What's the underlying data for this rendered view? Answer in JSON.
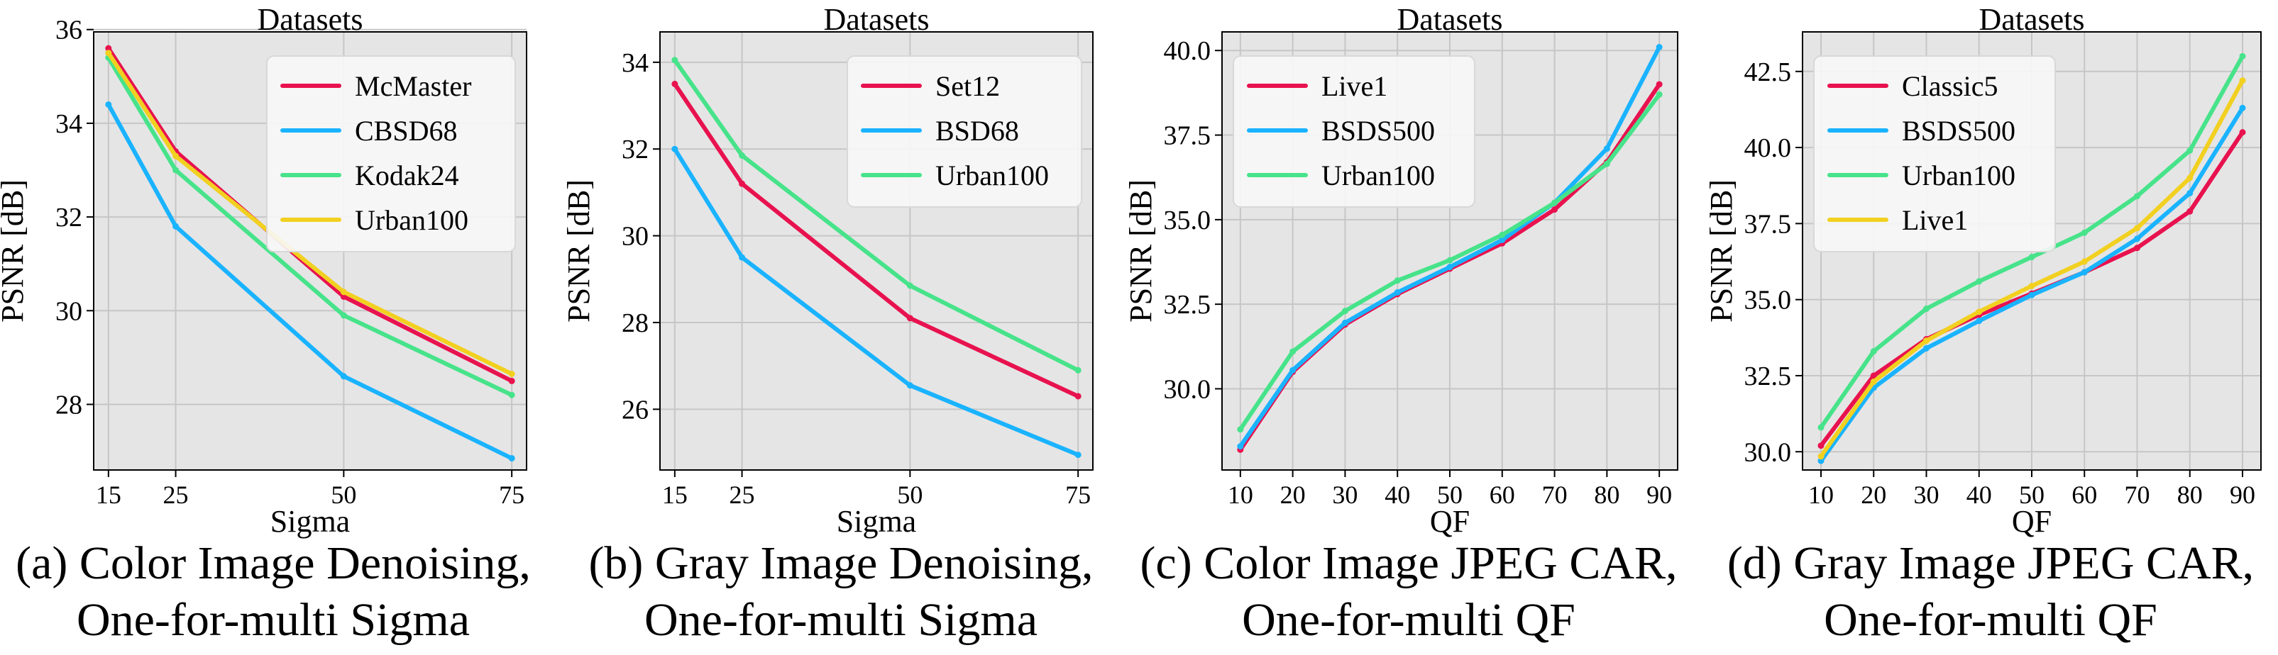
{
  "chart_data": [
    {
      "type": "line",
      "title": "Datasets",
      "xlabel": "Sigma",
      "ylabel": "PSNR [dB]",
      "x": [
        15,
        25,
        50,
        75
      ],
      "xticks": [
        15,
        25,
        50,
        75
      ],
      "xlim": [
        12.8,
        77.2
      ],
      "yticks": [
        28,
        30,
        32,
        34,
        36
      ],
      "ytick_labels": [
        "28",
        "30",
        "32",
        "34",
        "36"
      ],
      "ylim": [
        26.6,
        35.95
      ],
      "grid": true,
      "legend": "top-right",
      "caption": [
        "(a) Color Image Denoising,",
        "One-for-multi Sigma"
      ],
      "series": [
        {
          "name": "McMaster",
          "color": "#e8124f",
          "values": [
            35.6,
            33.4,
            30.3,
            28.5
          ]
        },
        {
          "name": "CBSD68",
          "color": "#1ab3ff",
          "values": [
            34.4,
            31.8,
            28.6,
            26.85
          ]
        },
        {
          "name": "Kodak24",
          "color": "#47e38a",
          "values": [
            35.4,
            33.0,
            29.9,
            28.2
          ]
        },
        {
          "name": "Urban100",
          "color": "#f2d020",
          "values": [
            35.5,
            33.3,
            30.4,
            28.65
          ]
        }
      ]
    },
    {
      "type": "line",
      "title": "Datasets",
      "xlabel": "Sigma",
      "ylabel": "PSNR [dB]",
      "x": [
        15,
        25,
        50,
        75
      ],
      "xticks": [
        15,
        25,
        50,
        75
      ],
      "xlim": [
        12.8,
        77.2
      ],
      "yticks": [
        26,
        28,
        30,
        32,
        34
      ],
      "ytick_labels": [
        "26",
        "28",
        "30",
        "32",
        "34"
      ],
      "ylim": [
        24.6,
        34.7
      ],
      "grid": true,
      "legend": "top-right",
      "caption": [
        "(b) Gray Image Denoising,",
        "One-for-multi Sigma"
      ],
      "series": [
        {
          "name": "Set12",
          "color": "#e8124f",
          "values": [
            33.5,
            31.2,
            28.1,
            26.3
          ]
        },
        {
          "name": "BSD68",
          "color": "#1ab3ff",
          "values": [
            32.0,
            29.5,
            26.55,
            24.95
          ]
        },
        {
          "name": "Urban100",
          "color": "#47e38a",
          "values": [
            34.05,
            31.85,
            28.85,
            26.9
          ]
        }
      ]
    },
    {
      "type": "line",
      "title": "Datasets",
      "xlabel": "QF",
      "ylabel": "PSNR [dB]",
      "x": [
        10,
        20,
        30,
        40,
        50,
        60,
        70,
        80,
        90
      ],
      "xticks": [
        10,
        20,
        30,
        40,
        50,
        60,
        70,
        80,
        90
      ],
      "xlim": [
        6.5,
        93.5
      ],
      "yticks": [
        30.0,
        32.5,
        35.0,
        37.5,
        40.0
      ],
      "ytick_labels": [
        "30.0",
        "32.5",
        "35.0",
        "37.5",
        "40.0"
      ],
      "ylim": [
        27.6,
        40.55
      ],
      "grid": true,
      "legend": "top-left",
      "caption": [
        "(c) Color Image JPEG CAR,",
        "One-for-multi QF"
      ],
      "series": [
        {
          "name": "Live1",
          "color": "#e8124f",
          "values": [
            28.2,
            30.5,
            31.9,
            32.8,
            33.55,
            34.3,
            35.3,
            36.7,
            39.0
          ]
        },
        {
          "name": "BSDS500",
          "color": "#1ab3ff",
          "values": [
            28.3,
            30.55,
            31.95,
            32.85,
            33.6,
            34.4,
            35.5,
            37.1,
            40.1
          ]
        },
        {
          "name": "Urban100",
          "color": "#47e38a",
          "values": [
            28.8,
            31.1,
            32.3,
            33.2,
            33.8,
            34.55,
            35.5,
            36.65,
            38.7
          ]
        }
      ]
    },
    {
      "type": "line",
      "title": "Datasets",
      "xlabel": "QF",
      "ylabel": "PSNR [dB]",
      "x": [
        10,
        20,
        30,
        40,
        50,
        60,
        70,
        80,
        90
      ],
      "xticks": [
        10,
        20,
        30,
        40,
        50,
        60,
        70,
        80,
        90
      ],
      "xlim": [
        6.5,
        93.5
      ],
      "yticks": [
        30.0,
        32.5,
        35.0,
        37.5,
        40.0,
        42.5
      ],
      "ytick_labels": [
        "30.0",
        "32.5",
        "35.0",
        "37.5",
        "40.0",
        "42.5"
      ],
      "ylim": [
        29.4,
        43.8
      ],
      "grid": true,
      "legend": "top-left",
      "caption": [
        "(d) Gray Image JPEG CAR,",
        "One-for-multi QF"
      ],
      "series": [
        {
          "name": "Classic5",
          "color": "#e8124f",
          "values": [
            30.2,
            32.5,
            33.7,
            34.5,
            35.2,
            35.9,
            36.7,
            37.9,
            40.5
          ]
        },
        {
          "name": "BSDS500",
          "color": "#1ab3ff",
          "values": [
            29.7,
            32.1,
            33.4,
            34.3,
            35.15,
            35.9,
            37.0,
            38.5,
            41.3
          ]
        },
        {
          "name": "Urban100",
          "color": "#47e38a",
          "values": [
            30.8,
            33.3,
            34.7,
            35.6,
            36.4,
            37.2,
            38.4,
            39.9,
            43.0
          ]
        },
        {
          "name": "Live1",
          "color": "#f2d020",
          "values": [
            29.85,
            32.3,
            33.65,
            34.6,
            35.45,
            36.25,
            37.35,
            39.0,
            42.2
          ]
        }
      ]
    }
  ]
}
